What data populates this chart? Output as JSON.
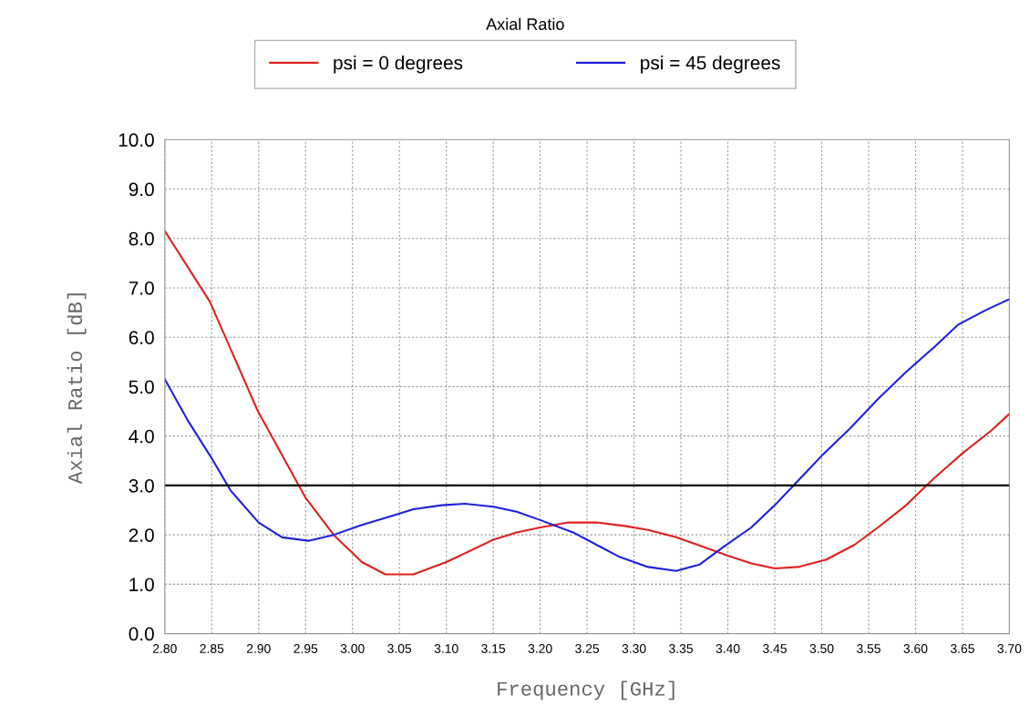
{
  "chart_data": {
    "type": "line",
    "title": "Axial Ratio",
    "xlabel": "Frequency [GHz]",
    "ylabel": "Axial Ratio [dB]",
    "xlim": [
      2.8,
      3.7
    ],
    "xticks": [
      {
        "value": 2.8,
        "label": "2.80"
      },
      {
        "value": 2.85,
        "label": "2.85"
      },
      {
        "value": 2.9,
        "label": "2.90"
      },
      {
        "value": 2.95,
        "label": "2.95"
      },
      {
        "value": 3.0,
        "label": "3.00"
      },
      {
        "value": 3.05,
        "label": "3.05"
      },
      {
        "value": 3.1,
        "label": "3.10"
      },
      {
        "value": 3.15,
        "label": "3.15"
      },
      {
        "value": 3.2,
        "label": "3.20"
      },
      {
        "value": 3.25,
        "label": "3.25"
      },
      {
        "value": 3.3,
        "label": "3.30"
      },
      {
        "value": 3.35,
        "label": "3.35"
      },
      {
        "value": 3.4,
        "label": "3.40"
      },
      {
        "value": 3.45,
        "label": "3.45"
      },
      {
        "value": 3.5,
        "label": "3.50"
      },
      {
        "value": 3.55,
        "label": "3.55"
      },
      {
        "value": 3.6,
        "label": "3.60"
      },
      {
        "value": 3.65,
        "label": "3.65"
      },
      {
        "value": 3.7,
        "label": "3.70"
      }
    ],
    "ylim": [
      0,
      10
    ],
    "yticks": [
      {
        "value": 0,
        "label": "0.0"
      },
      {
        "value": 1,
        "label": "1.0"
      },
      {
        "value": 2,
        "label": "2.0"
      },
      {
        "value": 3,
        "label": "3.0"
      },
      {
        "value": 4,
        "label": "4.0"
      },
      {
        "value": 5,
        "label": "5.0"
      },
      {
        "value": 6,
        "label": "6.0"
      },
      {
        "value": 7,
        "label": "7.0"
      },
      {
        "value": 8,
        "label": "8.0"
      },
      {
        "value": 9,
        "label": "9.0"
      },
      {
        "value": 10,
        "label": "10.0"
      }
    ],
    "grid": true,
    "legend": "top",
    "line_style": "solid",
    "ref_lines": [
      {
        "axis": "y",
        "value": 3,
        "color": "#000000"
      }
    ],
    "series": [
      {
        "name": "psi = 0 degrees",
        "color": "#e02020",
        "x": [
          2.8,
          2.848,
          2.899,
          2.95,
          2.98,
          3.01,
          3.035,
          3.065,
          3.1,
          3.15,
          3.175,
          3.2,
          3.23,
          3.26,
          3.29,
          3.315,
          3.345,
          3.375,
          3.4,
          3.425,
          3.45,
          3.475,
          3.505,
          3.535,
          3.56,
          3.59,
          3.62,
          3.65,
          3.68,
          3.7
        ],
        "values": [
          8.15,
          6.72,
          4.51,
          2.75,
          2.0,
          1.45,
          1.2,
          1.2,
          1.45,
          1.9,
          2.05,
          2.15,
          2.25,
          2.25,
          2.18,
          2.1,
          1.95,
          1.75,
          1.58,
          1.42,
          1.32,
          1.35,
          1.5,
          1.8,
          2.15,
          2.6,
          3.15,
          3.65,
          4.1,
          4.45
        ]
      },
      {
        "name": "psi = 45 degrees",
        "color": "#2020e0",
        "x": [
          2.8,
          2.825,
          2.85,
          2.87,
          2.9,
          2.925,
          2.953,
          2.98,
          3.01,
          3.04,
          3.065,
          3.095,
          3.12,
          3.15,
          3.175,
          3.2,
          3.235,
          3.26,
          3.285,
          3.315,
          3.345,
          3.37,
          3.395,
          3.425,
          3.45,
          3.475,
          3.5,
          3.53,
          3.56,
          3.59,
          3.62,
          3.645,
          3.675,
          3.7
        ],
        "values": [
          5.15,
          4.3,
          3.55,
          2.9,
          2.25,
          1.95,
          1.88,
          2.0,
          2.2,
          2.37,
          2.52,
          2.6,
          2.63,
          2.57,
          2.47,
          2.3,
          2.05,
          1.8,
          1.55,
          1.35,
          1.27,
          1.4,
          1.75,
          2.15,
          2.6,
          3.1,
          3.6,
          4.15,
          4.75,
          5.3,
          5.8,
          6.25,
          6.55,
          6.77
        ]
      }
    ]
  }
}
